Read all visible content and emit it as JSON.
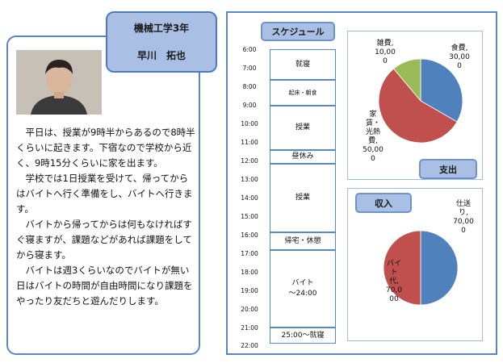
{
  "profile": {
    "department": "機械工学3年",
    "name": "早川　拓也",
    "bio": "　平日は、授業が9時半からあるので8時半くらいに起きます。下宿なので学校から近く、9時15分くらいに家を出ます。\n　学校では1日授業を受けて、帰ってからはバイトへ行く準備をし、バイトへ行きます。\n　バイトから帰ってからは何もなければすぐ寝ますが、課題などがあれば課題をしてから寝ます。\n　バイトは週3くらいなのでバイトが無い日はバイトの時間が自由時間になり課題をやったり友だちと遊んだりします。"
  },
  "schedule": {
    "title": "スケジュール",
    "times": [
      "6:00",
      "7:00",
      "8:00",
      "9:00",
      "10:00",
      "11:00",
      "12:00",
      "13:00",
      "14:00",
      "15:00",
      "16:00",
      "17:00",
      "18:00",
      "19:00",
      "20:00",
      "21:00",
      "22:00"
    ],
    "blocks": [
      {
        "label": "就寝"
      },
      {
        "label": "起床・朝食"
      },
      {
        "label": "授業"
      },
      {
        "label": "昼休み"
      },
      {
        "label": "授業"
      },
      {
        "label": "帰宅・休憩"
      },
      {
        "label": "バイト\n～24:00"
      },
      {
        "label": "25:00～就寝"
      }
    ]
  },
  "chart_data": [
    {
      "type": "pie",
      "title": "支出",
      "categories": [
        "食費",
        "家賃・光熱費",
        "雑費"
      ],
      "values": [
        30000,
        50000,
        10000
      ],
      "data_labels": [
        "食費,\n30,00\n0",
        "家\n賃・\n光熱\n費,\n50,00\n0",
        "雑費,\n10,00\n0"
      ],
      "colors": [
        "#4f81bd",
        "#c0504d",
        "#9bbb59"
      ]
    },
    {
      "type": "pie",
      "title": "収入",
      "categories": [
        "仕送り",
        "バイト代"
      ],
      "values": [
        70000,
        70000
      ],
      "data_labels": [
        "仕送\nり,\n70,00\n0",
        "バイ\nト\n代,\n70,0\n00"
      ],
      "colors": [
        "#4f81bd",
        "#c0504d"
      ]
    }
  ]
}
